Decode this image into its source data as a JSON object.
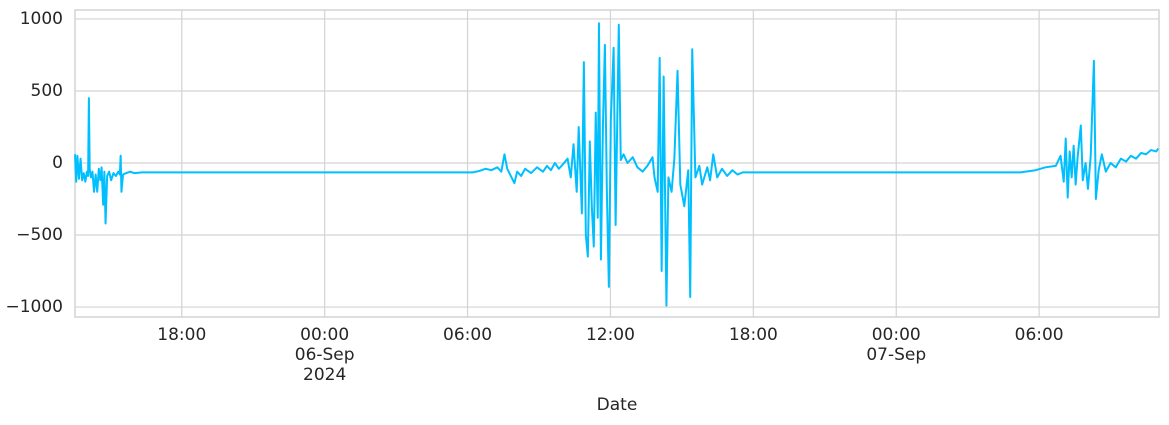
{
  "chart_data": {
    "type": "line",
    "x_label": "Date",
    "x": [
      "2024-09-05 13:31",
      "2024-09-05 13:34",
      "2024-09-05 13:37",
      "2024-09-05 13:41",
      "2024-09-05 13:45",
      "2024-09-05 13:49",
      "2024-09-05 13:53",
      "2024-09-05 13:57",
      "2024-09-05 14:01",
      "2024-09-05 14:04",
      "2024-09-05 14:06",
      "2024-09-05 14:08",
      "2024-09-05 14:11",
      "2024-09-05 14:15",
      "2024-09-05 14:19",
      "2024-09-05 14:23",
      "2024-09-05 14:27",
      "2024-09-05 14:31",
      "2024-09-05 14:35",
      "2024-09-05 14:38",
      "2024-09-05 14:42",
      "2024-09-05 14:45",
      "2024-09-05 14:48",
      "2024-09-05 14:52",
      "2024-09-05 14:57",
      "2024-09-05 15:02",
      "2024-09-05 15:08",
      "2024-09-05 15:14",
      "2024-09-05 15:20",
      "2024-09-05 15:24",
      "2024-09-05 15:26",
      "2024-09-05 15:28",
      "2024-09-05 15:32",
      "2024-09-05 15:40",
      "2024-09-05 15:50",
      "2024-09-05 16:00",
      "2024-09-05 16:20",
      "2024-09-06 06:13",
      "2024-09-06 06:30",
      "2024-09-06 06:45",
      "2024-09-06 07:00",
      "2024-09-06 07:15",
      "2024-09-06 07:25",
      "2024-09-06 07:33",
      "2024-09-06 07:40",
      "2024-09-06 07:58",
      "2024-09-06 08:05",
      "2024-09-06 08:15",
      "2024-09-06 08:25",
      "2024-09-06 08:40",
      "2024-09-06 08:55",
      "2024-09-06 09:10",
      "2024-09-06 09:20",
      "2024-09-06 09:30",
      "2024-09-06 09:40",
      "2024-09-06 09:50",
      "2024-09-06 10:00",
      "2024-09-06 10:12",
      "2024-09-06 10:20",
      "2024-09-06 10:27",
      "2024-09-06 10:35",
      "2024-09-06 10:40",
      "2024-09-06 10:48",
      "2024-09-06 10:53",
      "2024-09-06 10:58",
      "2024-09-06 11:03",
      "2024-09-06 11:08",
      "2024-09-06 11:13",
      "2024-09-06 11:18",
      "2024-09-06 11:23",
      "2024-09-06 11:28",
      "2024-09-06 11:31",
      "2024-09-06 11:36",
      "2024-09-06 11:41",
      "2024-09-06 11:46",
      "2024-09-06 11:51",
      "2024-09-06 11:56",
      "2024-09-06 12:01",
      "2024-09-06 12:08",
      "2024-09-06 12:13",
      "2024-09-06 12:21",
      "2024-09-06 12:26",
      "2024-09-06 12:33",
      "2024-09-06 12:43",
      "2024-09-06 12:56",
      "2024-09-06 13:08",
      "2024-09-06 13:21",
      "2024-09-06 13:33",
      "2024-09-06 13:46",
      "2024-09-06 13:51",
      "2024-09-06 13:59",
      "2024-09-06 14:04",
      "2024-09-06 14:09",
      "2024-09-06 14:14",
      "2024-09-06 14:21",
      "2024-09-06 14:26",
      "2024-09-06 14:34",
      "2024-09-06 14:41",
      "2024-09-06 14:49",
      "2024-09-06 14:56",
      "2024-09-06 15:06",
      "2024-09-06 15:16",
      "2024-09-06 15:21",
      "2024-09-06 15:26",
      "2024-09-06 15:34",
      "2024-09-06 15:44",
      "2024-09-06 15:51",
      "2024-09-06 16:04",
      "2024-09-06 16:11",
      "2024-09-06 16:19",
      "2024-09-06 16:29",
      "2024-09-06 16:41",
      "2024-09-06 16:54",
      "2024-09-06 17:07",
      "2024-09-06 17:20",
      "2024-09-06 17:33",
      "2024-09-07 05:13",
      "2024-09-07 05:51",
      "2024-09-07 06:16",
      "2024-09-07 06:42",
      "2024-09-07 06:54",
      "2024-09-07 07:02",
      "2024-09-07 07:07",
      "2024-09-07 07:12",
      "2024-09-07 07:17",
      "2024-09-07 07:22",
      "2024-09-07 07:27",
      "2024-09-07 07:32",
      "2024-09-07 07:37",
      "2024-09-07 07:45",
      "2024-09-07 07:50",
      "2024-09-07 07:57",
      "2024-09-07 08:03",
      "2024-09-07 08:10",
      "2024-09-07 08:18",
      "2024-09-07 08:23",
      "2024-09-07 08:30",
      "2024-09-07 08:38",
      "2024-09-07 08:48",
      "2024-09-07 09:00",
      "2024-09-07 09:13",
      "2024-09-07 09:26",
      "2024-09-07 09:39",
      "2024-09-07 09:51",
      "2024-09-07 10:04",
      "2024-09-07 10:17",
      "2024-09-07 10:29",
      "2024-09-07 10:42",
      "2024-09-07 10:55",
      "2024-09-07 11:00"
    ],
    "series": [
      {
        "color": "#00bfff",
        "values": [
          60,
          -130,
          50,
          -110,
          30,
          -120,
          -70,
          -130,
          -60,
          -90,
          450,
          -40,
          -100,
          -60,
          -200,
          -80,
          -200,
          -40,
          -120,
          -30,
          -290,
          -60,
          -420,
          -90,
          -60,
          -120,
          -70,
          -90,
          -60,
          -80,
          50,
          -200,
          -80,
          -70,
          -60,
          -70,
          -65,
          -65,
          -55,
          -40,
          -50,
          -30,
          -60,
          60,
          -40,
          -140,
          -60,
          -90,
          -40,
          -70,
          -30,
          -60,
          -20,
          -50,
          0,
          -40,
          -10,
          30,
          -100,
          130,
          -200,
          250,
          -350,
          700,
          -500,
          -650,
          150,
          -300,
          -580,
          350,
          -380,
          970,
          -670,
          250,
          820,
          -200,
          -860,
          300,
          800,
          -430,
          960,
          20,
          60,
          0,
          40,
          -30,
          -60,
          -20,
          40,
          -100,
          -200,
          730,
          -750,
          600,
          -990,
          -100,
          -200,
          30,
          640,
          -150,
          -300,
          -50,
          -930,
          790,
          -100,
          -20,
          -150,
          -30,
          -120,
          60,
          -100,
          -40,
          -90,
          -50,
          -80,
          -65,
          -65,
          -50,
          -30,
          -20,
          50,
          -130,
          170,
          -240,
          80,
          -100,
          120,
          -150,
          40,
          260,
          -120,
          0,
          -180,
          50,
          710,
          -250,
          -50,
          60,
          -60,
          0,
          -30,
          30,
          10,
          50,
          30,
          70,
          60,
          90,
          80,
          100
        ]
      }
    ],
    "xlim": [
      "2024-09-05 13:31",
      "2024-09-07 11:02"
    ],
    "xticks": [
      {
        "value": "2024-09-05 18:00",
        "label": [
          "18:00"
        ]
      },
      {
        "value": "2024-09-06 00:00",
        "label": [
          "00:00",
          "06-Sep",
          "2024"
        ]
      },
      {
        "value": "2024-09-06 06:00",
        "label": [
          "06:00"
        ]
      },
      {
        "value": "2024-09-06 12:00",
        "label": [
          "12:00"
        ]
      },
      {
        "value": "2024-09-06 18:00",
        "label": [
          "18:00"
        ]
      },
      {
        "value": "2024-09-07 00:00",
        "label": [
          "00:00",
          "07-Sep"
        ]
      },
      {
        "value": "2024-09-07 06:00",
        "label": [
          "06:00"
        ]
      }
    ],
    "ylim": [
      -1069,
      1062
    ],
    "yticks": [
      {
        "value": -1000,
        "label": "−1000"
      },
      {
        "value": -500,
        "label": "−500"
      },
      0,
      500,
      1000
    ],
    "grid": true
  }
}
